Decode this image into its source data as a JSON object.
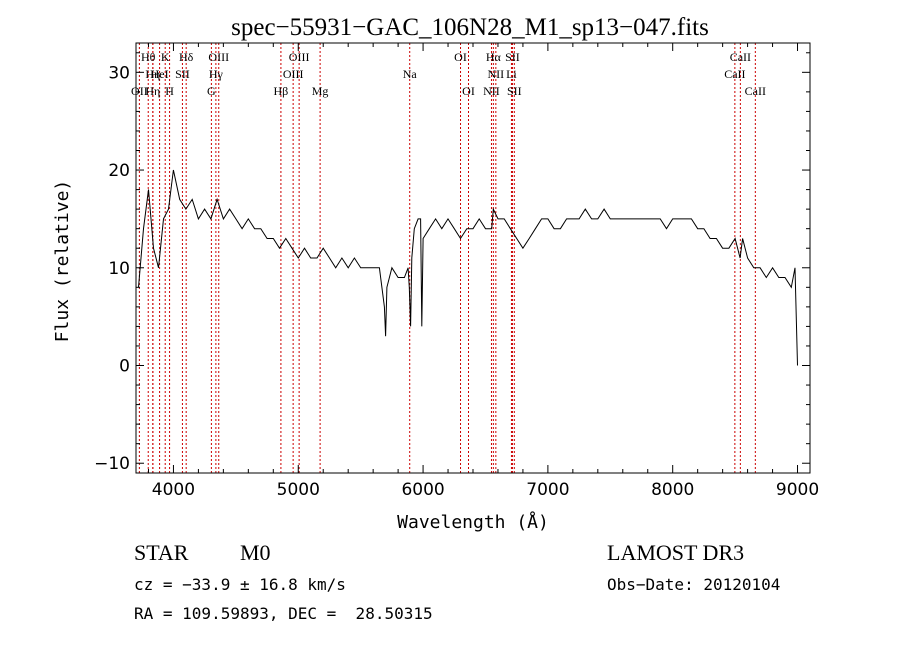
{
  "chart_data": {
    "type": "line",
    "title": "spec−55931−GAC_106N28_M1_sp13−047.fits",
    "xlabel": "Wavelength (Å)",
    "ylabel": "Flux (relative)",
    "xlim": [
      3700,
      9100
    ],
    "ylim": [
      -11,
      33
    ],
    "xticks": [
      4000,
      5000,
      6000,
      7000,
      8000,
      9000
    ],
    "yticks": [
      -10,
      0,
      10,
      20,
      30
    ],
    "x_tick_labels": [
      "4000",
      "5000",
      "6000",
      "7000",
      "8000",
      "9000"
    ],
    "y_tick_labels": [
      "−10",
      "0",
      "10",
      "20",
      "30"
    ],
    "grid": false,
    "line_color": "#000000",
    "marker_line_color": "#cc0000",
    "series": [
      {
        "name": "flux",
        "x": [
          3720,
          3760,
          3800,
          3840,
          3880,
          3920,
          3960,
          4000,
          4050,
          4100,
          4150,
          4200,
          4250,
          4300,
          4350,
          4400,
          4450,
          4500,
          4550,
          4600,
          4650,
          4700,
          4750,
          4800,
          4850,
          4900,
          4950,
          5000,
          5050,
          5100,
          5150,
          5200,
          5250,
          5300,
          5350,
          5400,
          5450,
          5500,
          5550,
          5600,
          5650,
          5690,
          5700,
          5710,
          5750,
          5800,
          5850,
          5880,
          5890,
          5900,
          5910,
          5930,
          5960,
          5980,
          5990,
          6000,
          6050,
          6100,
          6150,
          6200,
          6250,
          6300,
          6350,
          6400,
          6450,
          6500,
          6550,
          6563,
          6600,
          6650,
          6700,
          6750,
          6800,
          6850,
          6900,
          6950,
          7000,
          7050,
          7100,
          7150,
          7200,
          7250,
          7300,
          7350,
          7400,
          7450,
          7500,
          7550,
          7600,
          7650,
          7700,
          7750,
          7800,
          7850,
          7900,
          7950,
          8000,
          8050,
          8100,
          8150,
          8200,
          8250,
          8300,
          8350,
          8400,
          8450,
          8500,
          8540,
          8560,
          8600,
          8650,
          8700,
          8750,
          8800,
          8850,
          8900,
          8950,
          8980,
          9000
        ],
        "y": [
          8,
          14,
          18,
          12,
          10,
          15,
          16,
          20,
          17,
          16,
          17,
          15,
          16,
          15,
          17,
          15,
          16,
          15,
          14,
          15,
          14,
          14,
          13,
          13,
          12,
          13,
          12,
          11,
          12,
          11,
          11,
          12,
          11,
          10,
          11,
          10,
          11,
          10,
          10,
          10,
          10,
          6,
          3,
          8,
          10,
          9,
          9,
          10,
          8,
          4,
          11,
          14,
          15,
          15,
          4,
          13,
          14,
          15,
          14,
          15,
          14,
          13,
          14,
          14,
          15,
          14,
          14,
          16,
          15,
          15,
          14,
          13,
          12,
          13,
          14,
          15,
          15,
          14,
          14,
          15,
          15,
          15,
          16,
          15,
          15,
          16,
          15,
          15,
          15,
          15,
          15,
          15,
          15,
          15,
          15,
          14,
          15,
          15,
          15,
          15,
          14,
          14,
          13,
          13,
          12,
          12,
          13,
          11,
          13,
          11,
          10,
          10,
          9,
          10,
          9,
          9,
          8,
          10,
          0
        ]
      }
    ],
    "line_markers": [
      {
        "label": "Hθ",
        "x": 3798,
        "row": 1
      },
      {
        "label": "K",
        "x": 3934,
        "row": 1
      },
      {
        "label": "Hδ",
        "x": 4102,
        "row": 1
      },
      {
        "label": "OIII",
        "x": 4363,
        "row": 1
      },
      {
        "label": "OIII",
        "x": 5007,
        "row": 1
      },
      {
        "label": "OI",
        "x": 6300,
        "row": 1
      },
      {
        "label": "Hα",
        "x": 6563,
        "row": 1
      },
      {
        "label": "SII",
        "x": 6716,
        "row": 1
      },
      {
        "label": "CaII",
        "x": 8542,
        "row": 1
      },
      {
        "label": "Hη",
        "x": 3835,
        "row": 2
      },
      {
        "label": "HeI",
        "x": 3889,
        "row": 2
      },
      {
        "label": "SII",
        "x": 4072,
        "row": 2
      },
      {
        "label": "Hγ",
        "x": 4340,
        "row": 2
      },
      {
        "label": "OIII",
        "x": 4959,
        "row": 2
      },
      {
        "label": "Na",
        "x": 5893,
        "row": 2
      },
      {
        "label": "NII",
        "x": 6583,
        "row": 2
      },
      {
        "label": "Li",
        "x": 6708,
        "row": 2
      },
      {
        "label": "CaII",
        "x": 8498,
        "row": 2
      },
      {
        "label": "OII",
        "x": 3727,
        "row": 3
      },
      {
        "label": "Hη",
        "x": 3835,
        "row": 3
      },
      {
        "label": "H",
        "x": 3969,
        "row": 3
      },
      {
        "label": "G",
        "x": 4304,
        "row": 3
      },
      {
        "label": "Hβ",
        "x": 4861,
        "row": 3
      },
      {
        "label": "Mg",
        "x": 5175,
        "row": 3
      },
      {
        "label": "OI",
        "x": 6364,
        "row": 3
      },
      {
        "label": "NII",
        "x": 6548,
        "row": 3
      },
      {
        "label": "SII",
        "x": 6731,
        "row": 3
      },
      {
        "label": "CaII",
        "x": 8662,
        "row": 3
      }
    ]
  },
  "footer": {
    "object_type": "STAR",
    "subclass": "M0",
    "survey": "LAMOST DR3",
    "redshift_text": "cz = −33.9 ± 16.8 km/s",
    "obs_date_text": "Obs−Date: 20120104",
    "coords_text": "RA = 109.59893, DEC =  28.50315"
  }
}
